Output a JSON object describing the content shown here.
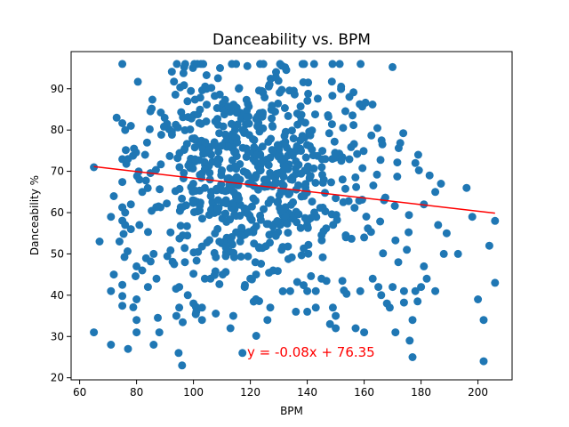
{
  "chart_data": {
    "type": "scatter",
    "title": "Danceability vs. BPM",
    "xlabel": "BPM",
    "ylabel": "Danceability %",
    "xlim": [
      57,
      212
    ],
    "ylim": [
      19.5,
      99
    ],
    "xticks": [
      60,
      80,
      100,
      120,
      140,
      160,
      180,
      200
    ],
    "yticks": [
      20,
      30,
      40,
      50,
      60,
      70,
      80,
      90
    ],
    "grid": false,
    "marker_color": "#1f77b4",
    "regression": {
      "slope": -0.08,
      "intercept": 76.35,
      "x_range": [
        65,
        206
      ],
      "color": "#ff0000",
      "equation_label": "y = -0.08x + 76.35"
    },
    "seed": 7,
    "points": [
      [
        65,
        31
      ],
      [
        65,
        71
      ],
      [
        67,
        53
      ],
      [
        71,
        28
      ],
      [
        71,
        41
      ],
      [
        71,
        59
      ],
      [
        72,
        45
      ],
      [
        72,
        64
      ],
      [
        73,
        83
      ],
      [
        74,
        53
      ],
      [
        76,
        80
      ],
      [
        76,
        60
      ],
      [
        76,
        57
      ],
      [
        77,
        27
      ],
      [
        77,
        73
      ],
      [
        78,
        81
      ],
      [
        78,
        62
      ],
      [
        78,
        56
      ],
      [
        80,
        31
      ],
      [
        80,
        47
      ],
      [
        80,
        34
      ],
      [
        80,
        39
      ],
      [
        81,
        68
      ],
      [
        81,
        57
      ],
      [
        82,
        65
      ],
      [
        82,
        46
      ],
      [
        83,
        74
      ],
      [
        84,
        42
      ],
      [
        86,
        50
      ],
      [
        86,
        28
      ],
      [
        87,
        44
      ],
      [
        88,
        31
      ],
      [
        94,
        35
      ],
      [
        95,
        37
      ],
      [
        95,
        42
      ],
      [
        96,
        23
      ],
      [
        97,
        48
      ],
      [
        98,
        40
      ],
      [
        100,
        38
      ],
      [
        101,
        36
      ],
      [
        103,
        34
      ],
      [
        103,
        37
      ],
      [
        104,
        44
      ],
      [
        106,
        44
      ],
      [
        113,
        32
      ],
      [
        114,
        35
      ],
      [
        118,
        42
      ],
      [
        120,
        44
      ],
      [
        122,
        45
      ],
      [
        126,
        34
      ],
      [
        128,
        46
      ],
      [
        131,
        51
      ],
      [
        134,
        41
      ],
      [
        136,
        36
      ],
      [
        140,
        41
      ],
      [
        140,
        36
      ],
      [
        143,
        37
      ],
      [
        143,
        41
      ],
      [
        145,
        44
      ],
      [
        148,
        33
      ],
      [
        149,
        37
      ],
      [
        150,
        35
      ],
      [
        150,
        32
      ],
      [
        157,
        32
      ],
      [
        160,
        31
      ],
      [
        160,
        54
      ],
      [
        163,
        44
      ],
      [
        165,
        42
      ],
      [
        166,
        40
      ],
      [
        167,
        63
      ],
      [
        168,
        38
      ],
      [
        169,
        37
      ],
      [
        170,
        42
      ],
      [
        171,
        31
      ],
      [
        172,
        48
      ],
      [
        174,
        41
      ],
      [
        175,
        51
      ],
      [
        176,
        29
      ],
      [
        177,
        34
      ],
      [
        177,
        25
      ],
      [
        178,
        41
      ],
      [
        178,
        72
      ],
      [
        179,
        74
      ],
      [
        180,
        42
      ],
      [
        181,
        47
      ],
      [
        181,
        62
      ],
      [
        182,
        44
      ],
      [
        183,
        69
      ],
      [
        185,
        41
      ],
      [
        185,
        65
      ],
      [
        186,
        57
      ],
      [
        187,
        67
      ],
      [
        188,
        50
      ],
      [
        189,
        55
      ],
      [
        193,
        50
      ],
      [
        196,
        66
      ],
      [
        198,
        59
      ],
      [
        200,
        39
      ],
      [
        202,
        34
      ],
      [
        202,
        24
      ],
      [
        204,
        52
      ],
      [
        206,
        58
      ],
      [
        206,
        43
      ]
    ]
  }
}
